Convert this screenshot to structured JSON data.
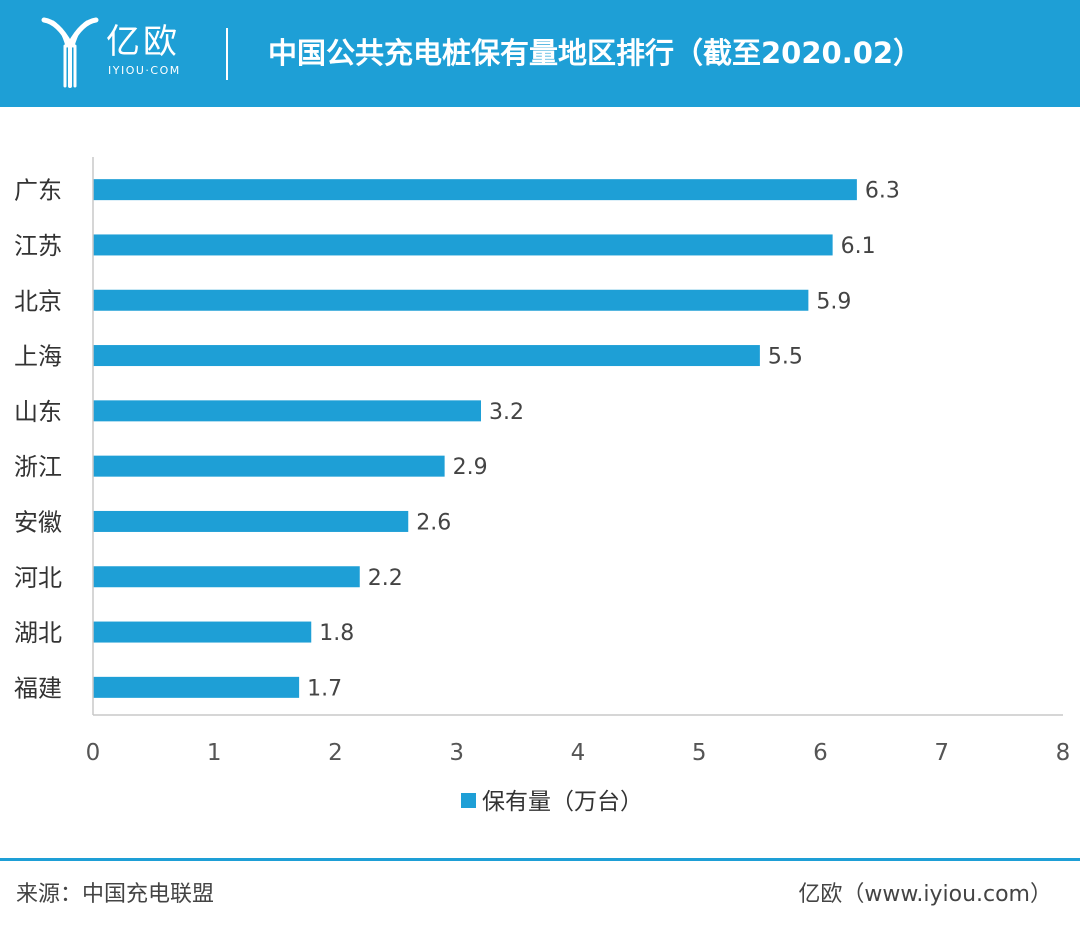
{
  "header": {
    "logo_text": "亿欧",
    "logo_sub": "IYIOU·COM",
    "title": "中国公共充电桩保有量地区排行（截至2020.02）"
  },
  "colors": {
    "brand": "#1e9fd6",
    "bar": "#1e9fd6",
    "axis": "#c8c8c8"
  },
  "chart_data": {
    "type": "bar",
    "orientation": "horizontal",
    "categories": [
      "广东",
      "江苏",
      "北京",
      "上海",
      "山东",
      "浙江",
      "安徽",
      "河北",
      "湖北",
      "福建"
    ],
    "series": [
      {
        "name": "保有量（万台）",
        "values": [
          6.3,
          6.1,
          5.9,
          5.5,
          3.2,
          2.9,
          2.6,
          2.2,
          1.8,
          1.7
        ]
      }
    ],
    "xlim": [
      0,
      8
    ],
    "xticks": [
      0,
      1,
      2,
      3,
      4,
      5,
      6,
      7,
      8
    ],
    "data_labels": [
      "6.3",
      "6.1",
      "5.9",
      "5.5",
      "3.2",
      "2.9",
      "2.6",
      "2.2",
      "1.8",
      "1.7"
    ],
    "legend_placement": "bottom-center",
    "grid": false
  },
  "footer": {
    "source": "来源：中国充电联盟",
    "brand": "亿欧（www.iyiou.com）"
  }
}
